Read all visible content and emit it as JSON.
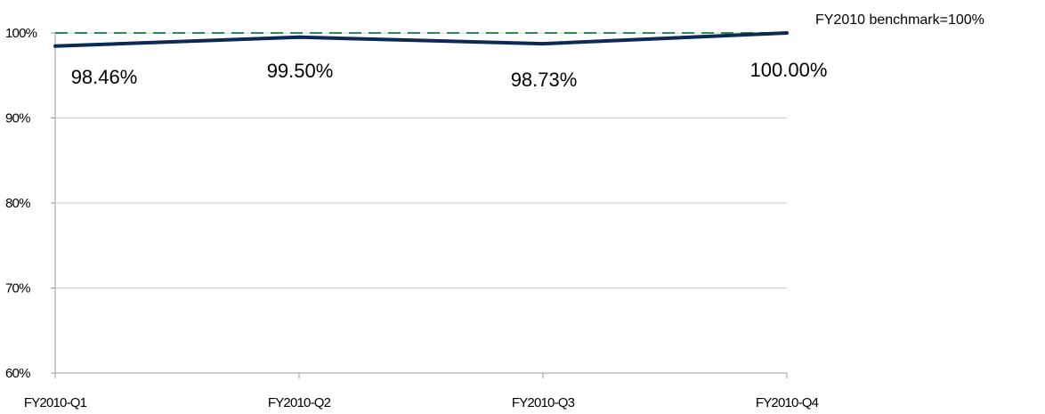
{
  "chart_data": {
    "type": "line",
    "categories": [
      "FY2010-Q1",
      "FY2010-Q2",
      "FY2010-Q3",
      "FY2010-Q4"
    ],
    "series": [
      {
        "values": [
          98.46,
          99.5,
          98.73,
          100.0
        ],
        "data_labels": [
          "98.46%",
          "99.50%",
          "98.73%",
          "100.00%"
        ],
        "color": "#0b2a55",
        "style": "solid"
      }
    ],
    "benchmark": {
      "name": "FY2010 benchmark=100%",
      "value": 100,
      "color": "#2e8b57",
      "style": "dashed"
    },
    "y_ticks": [
      60,
      70,
      80,
      90,
      100
    ],
    "y_tick_labels": [
      "60%",
      "70%",
      "80%",
      "90%",
      "100%"
    ],
    "ylim": [
      60,
      100
    ],
    "grid": true,
    "legend_position": "top-right",
    "title": "",
    "xlabel": "",
    "ylabel": ""
  }
}
